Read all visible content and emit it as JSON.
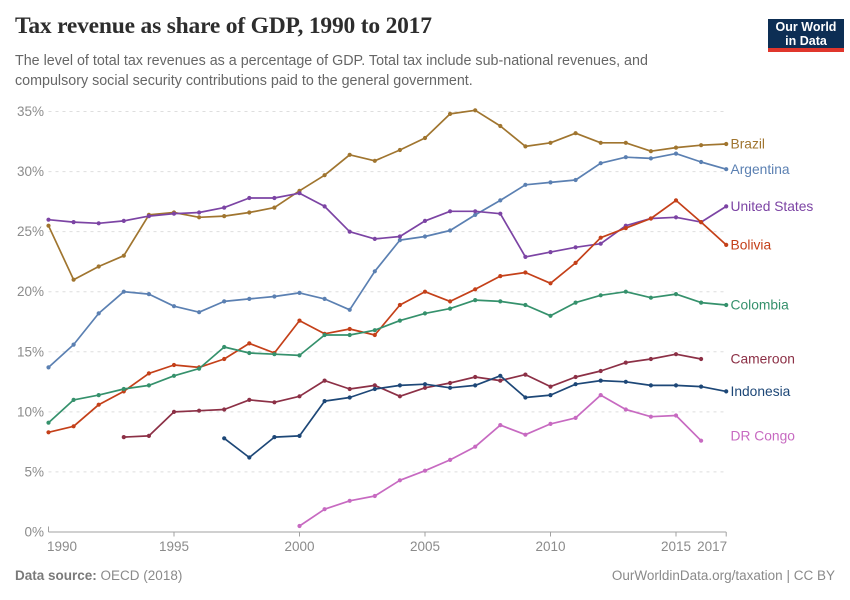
{
  "logo": {
    "line1": "Our World",
    "line2": "in Data"
  },
  "footer": {
    "source_label": "Data source:",
    "source_value": "OECD (2018)",
    "link": "OurWorldinData.org/taxation",
    "separator": " | ",
    "license": "CC BY"
  },
  "chart_data": {
    "type": "line",
    "title": "Tax revenue as share of GDP, 1990 to 2017",
    "subtitle": "The level of total tax revenues as a percentage of GDP. Total tax include sub-national revenues, and compulsory social security contributions paid to the general government.",
    "xlabel": "",
    "ylabel": "",
    "xlim": [
      1990,
      2017
    ],
    "ylim": [
      0,
      36
    ],
    "grid": true,
    "legend_position": "end-of-line-labels-right",
    "x_ticks": [
      1990,
      1995,
      2000,
      2005,
      2010,
      2015,
      2017
    ],
    "y_ticks": [
      0,
      5,
      10,
      15,
      20,
      25,
      30,
      35
    ],
    "y_tick_labels": [
      "0%",
      "5%",
      "10%",
      "15%",
      "20%",
      "25%",
      "30%",
      "35%"
    ],
    "series": [
      {
        "name": "Brazil",
        "color": "#A0752F",
        "start_year": 1990,
        "end_year": 2017,
        "values": [
          25.5,
          21.0,
          22.1,
          23.0,
          26.4,
          26.6,
          26.2,
          26.3,
          26.6,
          27.0,
          28.4,
          29.7,
          31.4,
          30.9,
          31.8,
          32.8,
          34.8,
          35.1,
          33.8,
          32.1,
          32.4,
          33.2,
          32.4,
          32.4,
          31.7,
          32.0,
          32.2,
          32.3
        ]
      },
      {
        "name": "Argentina",
        "color": "#5B80B2",
        "start_year": 1990,
        "end_year": 2017,
        "values": [
          13.7,
          15.6,
          18.2,
          20.0,
          19.8,
          18.8,
          18.3,
          19.2,
          19.4,
          19.6,
          19.9,
          19.4,
          18.5,
          21.7,
          24.3,
          24.6,
          25.1,
          26.4,
          27.6,
          28.9,
          29.1,
          29.3,
          30.7,
          31.2,
          31.1,
          31.5,
          30.8,
          30.2
        ]
      },
      {
        "name": "United States",
        "color": "#7C44A4",
        "start_year": 1990,
        "end_year": 2017,
        "values": [
          26.0,
          25.8,
          25.7,
          25.9,
          26.3,
          26.5,
          26.6,
          27.0,
          27.8,
          27.8,
          28.2,
          27.1,
          25.0,
          24.4,
          24.6,
          25.9,
          26.7,
          26.7,
          26.5,
          22.9,
          23.3,
          23.7,
          24.0,
          25.5,
          26.1,
          26.2,
          25.8,
          27.1
        ]
      },
      {
        "name": "Bolivia",
        "color": "#C44019",
        "start_year": 1990,
        "end_year": 2017,
        "values": [
          8.3,
          8.8,
          10.6,
          11.7,
          13.2,
          13.9,
          13.7,
          14.4,
          15.7,
          14.9,
          17.6,
          16.5,
          16.9,
          16.4,
          18.9,
          20.0,
          19.2,
          20.2,
          21.3,
          21.6,
          20.7,
          22.4,
          24.5,
          25.3,
          26.1,
          27.6,
          25.8,
          23.9
        ]
      },
      {
        "name": "Colombia",
        "color": "#35916C",
        "start_year": 1990,
        "end_year": 2017,
        "values": [
          9.1,
          11.0,
          11.4,
          11.9,
          12.2,
          13.0,
          13.6,
          15.4,
          14.9,
          14.8,
          14.7,
          16.4,
          16.4,
          16.8,
          17.6,
          18.2,
          18.6,
          19.3,
          19.2,
          18.9,
          18.0,
          19.1,
          19.7,
          20.0,
          19.5,
          19.8,
          19.1,
          18.9
        ]
      },
      {
        "name": "Cameroon",
        "color": "#8C3046",
        "start_year": 1993,
        "end_year": 2016,
        "values": [
          7.9,
          8.0,
          10.0,
          10.1,
          10.2,
          11.0,
          10.8,
          11.3,
          12.6,
          11.9,
          12.2,
          11.3,
          12.0,
          12.4,
          12.9,
          12.6,
          13.1,
          12.1,
          12.9,
          13.4,
          14.1,
          14.4,
          14.8,
          14.4
        ]
      },
      {
        "name": "Indonesia",
        "color": "#1D4777",
        "start_year": 1997,
        "end_year": 2017,
        "values": [
          7.8,
          6.2,
          7.9,
          8.0,
          10.9,
          11.2,
          11.9,
          12.2,
          12.3,
          12.0,
          12.2,
          13.0,
          11.2,
          11.4,
          12.3,
          12.6,
          12.5,
          12.2,
          12.2,
          12.1,
          11.7
        ]
      },
      {
        "name": "DR Congo",
        "color": "#C76AC1",
        "start_year": 2000,
        "end_year": 2016,
        "values": [
          0.5,
          1.9,
          2.6,
          3.0,
          4.3,
          5.1,
          6.0,
          7.1,
          8.9,
          8.1,
          9.0,
          9.5,
          11.4,
          10.2,
          9.6,
          9.7,
          7.6
        ]
      }
    ],
    "colors": {
      "grid": "#dedede",
      "axis": "#a1a1a1",
      "tick_text": "#8b8b8b",
      "logo_bg": "#0d2e54",
      "logo_accent": "#e0362c"
    }
  }
}
